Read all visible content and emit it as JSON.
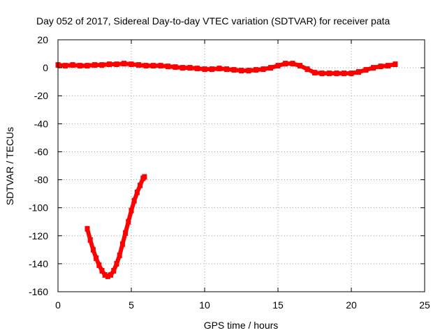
{
  "chart_data": {
    "type": "scatter",
    "title": "Day 052 of 2017, Sidereal Day-to-day VTEC variation (SDTVAR) for receiver pata",
    "xlabel": "GPS time / hours",
    "ylabel": "SDTVAR / TECUs",
    "xlim": [
      0,
      25
    ],
    "ylim": [
      -160,
      20
    ],
    "grid": true,
    "x_ticks": [
      0,
      5,
      10,
      15,
      20,
      25
    ],
    "x_tick_labels": [
      "0",
      "5",
      "10",
      "15",
      "20",
      "25"
    ],
    "y_ticks": [
      20,
      0,
      -20,
      -40,
      -60,
      -80,
      -100,
      -120,
      -140,
      -160
    ],
    "y_tick_labels": [
      "20",
      "0",
      "-20",
      "-40",
      "-60",
      "-80",
      "-100",
      "-120",
      "-140",
      "-160"
    ],
    "color": "#ff0000",
    "series": [
      {
        "name": "upper-track",
        "points": [
          [
            0.0,
            2
          ],
          [
            0.5,
            1.5
          ],
          [
            1.0,
            2
          ],
          [
            1.5,
            1.5
          ],
          [
            2.0,
            1.5
          ],
          [
            2.5,
            2
          ],
          [
            3.0,
            2
          ],
          [
            3.5,
            2.5
          ],
          [
            4.0,
            2.5
          ],
          [
            4.5,
            3
          ],
          [
            5.0,
            2.5
          ],
          [
            5.5,
            2
          ],
          [
            6.0,
            1.5
          ],
          [
            6.5,
            1.5
          ],
          [
            7.0,
            1.5
          ],
          [
            7.5,
            1
          ],
          [
            8.0,
            0.5
          ],
          [
            8.5,
            0
          ],
          [
            9.0,
            0
          ],
          [
            9.5,
            -0.5
          ],
          [
            10.0,
            -1
          ],
          [
            10.5,
            -1
          ],
          [
            11.0,
            -0.5
          ],
          [
            11.5,
            -1
          ],
          [
            12.0,
            -1.5
          ],
          [
            12.5,
            -2
          ],
          [
            13.0,
            -2
          ],
          [
            13.5,
            -1.5
          ],
          [
            14.0,
            -1
          ],
          [
            14.5,
            0
          ],
          [
            15.0,
            1.5
          ],
          [
            15.5,
            3
          ],
          [
            16.0,
            3
          ],
          [
            16.5,
            1.5
          ],
          [
            17.0,
            -1
          ],
          [
            17.5,
            -3.5
          ],
          [
            18.0,
            -4
          ],
          [
            18.5,
            -4
          ],
          [
            19.0,
            -4
          ],
          [
            19.5,
            -4
          ],
          [
            20.0,
            -4
          ],
          [
            20.5,
            -3
          ],
          [
            21.0,
            -1.5
          ],
          [
            21.5,
            0
          ],
          [
            22.0,
            1
          ],
          [
            22.5,
            1.5
          ],
          [
            23.0,
            2.5
          ]
        ]
      },
      {
        "name": "lower-track",
        "points": [
          [
            2.0,
            -115
          ],
          [
            2.2,
            -123
          ],
          [
            2.4,
            -130
          ],
          [
            2.6,
            -136
          ],
          [
            2.8,
            -141
          ],
          [
            3.0,
            -145
          ],
          [
            3.2,
            -148
          ],
          [
            3.4,
            -149
          ],
          [
            3.6,
            -148
          ],
          [
            3.8,
            -145
          ],
          [
            4.0,
            -140
          ],
          [
            4.2,
            -134
          ],
          [
            4.4,
            -126
          ],
          [
            4.6,
            -118
          ],
          [
            4.8,
            -110
          ],
          [
            5.0,
            -102
          ],
          [
            5.2,
            -95
          ],
          [
            5.4,
            -89
          ],
          [
            5.6,
            -84
          ],
          [
            5.8,
            -79
          ],
          [
            5.9,
            -78
          ]
        ]
      }
    ]
  }
}
